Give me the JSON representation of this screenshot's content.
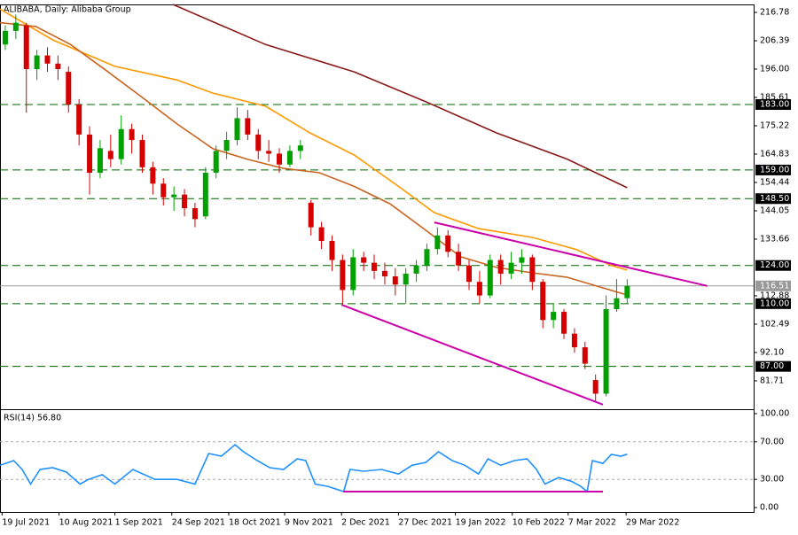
{
  "chart_data": {
    "type": "candlestick",
    "title": "ALIBABA, Daily:  Alibaba Group",
    "colors": {
      "up": "#00a000",
      "down": "#d40000"
    },
    "ohlc": [
      [
        205,
        212,
        203,
        210
      ],
      [
        210,
        216,
        207,
        213
      ],
      [
        212,
        213,
        180,
        196
      ],
      [
        196,
        203,
        192,
        201
      ],
      [
        201,
        204,
        195,
        198
      ],
      [
        198,
        201,
        192,
        196
      ],
      [
        195,
        197,
        180,
        183
      ],
      [
        183,
        185,
        168,
        172
      ],
      [
        172,
        175,
        150,
        158
      ],
      [
        158,
        170,
        156,
        167
      ],
      [
        166,
        172,
        160,
        163
      ],
      [
        163,
        179,
        161,
        174
      ],
      [
        174,
        176,
        165,
        170
      ],
      [
        170,
        172,
        158,
        160
      ],
      [
        160,
        162,
        150,
        154
      ],
      [
        154,
        156,
        146,
        149
      ],
      [
        149,
        153,
        144,
        150
      ],
      [
        150,
        152,
        142,
        145
      ],
      [
        145,
        147,
        138,
        141
      ],
      [
        142,
        160,
        141,
        158
      ],
      [
        158,
        168,
        156,
        166
      ],
      [
        166,
        173,
        163,
        170
      ],
      [
        170,
        182,
        168,
        178
      ],
      [
        178,
        181,
        170,
        172
      ],
      [
        172,
        174,
        163,
        166
      ],
      [
        166,
        170,
        162,
        165
      ],
      [
        165,
        167,
        158,
        161
      ],
      [
        161,
        168,
        160,
        166
      ],
      [
        166,
        170,
        163,
        168
      ],
      [
        147,
        148,
        135,
        138
      ],
      [
        138,
        140,
        130,
        133
      ],
      [
        133,
        135,
        122,
        126
      ],
      [
        126,
        128,
        110,
        115
      ],
      [
        115,
        130,
        113,
        127
      ],
      [
        127,
        129,
        122,
        125
      ],
      [
        125,
        128,
        119,
        122
      ],
      [
        122,
        125,
        117,
        120
      ],
      [
        120,
        123,
        113,
        117
      ],
      [
        117,
        123,
        110,
        121
      ],
      [
        121,
        126,
        118,
        124
      ],
      [
        124,
        132,
        122,
        130
      ],
      [
        130,
        138,
        128,
        135
      ],
      [
        135,
        137,
        127,
        129
      ],
      [
        129,
        132,
        122,
        124
      ],
      [
        124,
        126,
        115,
        118
      ],
      [
        118,
        122,
        110,
        113
      ],
      [
        113,
        128,
        112,
        126
      ],
      [
        126,
        128,
        117,
        121
      ],
      [
        121,
        129,
        119,
        125
      ],
      [
        125,
        130,
        121,
        127
      ],
      [
        127,
        128,
        115,
        118
      ],
      [
        118,
        119,
        101,
        104
      ],
      [
        104,
        110,
        101,
        107
      ],
      [
        107,
        108,
        97,
        99
      ],
      [
        99,
        101,
        92,
        94
      ],
      [
        94,
        96,
        86,
        88
      ],
      [
        82,
        84,
        74,
        77
      ],
      [
        77,
        113,
        76,
        108
      ],
      [
        108,
        119,
        107,
        112
      ],
      [
        112,
        119,
        110,
        116.51
      ]
    ],
    "xlim": [
      -0.5,
      71
    ],
    "xticks": [
      {
        "value": -0.3,
        "label": "19 Jul 2021"
      },
      {
        "value": 5.1,
        "label": "10 Aug 2021"
      },
      {
        "value": 10.4,
        "label": "1 Sep 2021"
      },
      {
        "value": 15.8,
        "label": "24 Sep 2021"
      },
      {
        "value": 21.2,
        "label": "18 Oct 2021"
      },
      {
        "value": 26.5,
        "label": "9 Nov 2021"
      },
      {
        "value": 31.9,
        "label": "2 Dec 2021"
      },
      {
        "value": 37.3,
        "label": "27 Dec 2021"
      },
      {
        "value": 42.7,
        "label": "19 Jan 2022"
      },
      {
        "value": 48.1,
        "label": "10 Feb 2022"
      },
      {
        "value": 53.4,
        "label": "7 Mar 2022"
      },
      {
        "value": 58.9,
        "label": "29 Mar 2022"
      }
    ],
    "ylim": [
      71.3,
      219.7
    ],
    "yticks": [
      216.78,
      206.39,
      {
        "value": 196,
        "label": "196.00"
      },
      185.61,
      175.22,
      164.83,
      154.44,
      144.05,
      133.66,
      112.88,
      102.49,
      {
        "value": 92.1,
        "label": "92.10"
      },
      81.71
    ],
    "moving_averages": [
      {
        "color": "#ff9900",
        "x": [
          -0.5,
          4.5,
          10.4,
          16.3,
          19.7,
          24.7,
          28.9,
          33.1,
          37.3,
          40.7,
          44.9,
          50,
          54.2,
          57.5,
          59
        ],
        "values": [
          218,
          206.7,
          197,
          192,
          187.2,
          182.4,
          172.6,
          164.5,
          153,
          143.4,
          137.5,
          134.3,
          129.8,
          124,
          122.3
        ]
      },
      {
        "color": "#c8641e",
        "x": [
          -0.5,
          2.9,
          6.2,
          9.6,
          13,
          16.3,
          19.7,
          23,
          26.4,
          29.8,
          33.1,
          36.5,
          39.9,
          43.2,
          46.6,
          50,
          53.3,
          56.7,
          59
        ],
        "values": [
          213,
          211.6,
          205,
          195.4,
          185.6,
          175.9,
          166.8,
          162.9,
          159.6,
          158,
          153,
          146.6,
          136.9,
          127.2,
          123.3,
          121.3,
          119.7,
          115.8,
          113.2
        ]
      },
      {
        "color": "#8b1a1a",
        "x": [
          15.9,
          24.7,
          33.1,
          39.9,
          46.6,
          53.3,
          59
        ],
        "values": [
          219.7,
          205,
          195,
          184,
          172.6,
          163,
          152.5
        ]
      }
    ],
    "level_color": "#006400",
    "levels": [
      {
        "value": 183,
        "label": "183.00"
      },
      {
        "value": 159,
        "label": "159.00"
      },
      {
        "value": 148.5,
        "label": "148.50"
      },
      {
        "value": 124,
        "label": "124.00"
      },
      {
        "value": 110,
        "label": "110.00"
      },
      {
        "value": 87,
        "label": "87.00"
      }
    ],
    "last_price": 116.51,
    "trendline_color": "#cc00aa",
    "trendlines": [
      {
        "x": [
          40.7,
          66.6
        ],
        "values": [
          139.8,
          116.5
        ]
      },
      {
        "x": [
          31.9,
          56.7
        ],
        "values": [
          109.6,
          73
        ]
      }
    ],
    "rsi": {
      "title": "RSI(14) 56.80",
      "color": "#1e90ff",
      "ylim": [
        -4.7,
        104.7
      ],
      "yticks": [
        {
          "value": 100,
          "label": "100.00"
        },
        {
          "value": 70,
          "label": "70.00"
        },
        {
          "value": 30,
          "label": "30.00"
        },
        {
          "value": 0,
          "label": "0.00"
        }
      ],
      "levels": [
        70,
        30
      ],
      "x": [
        -0.5,
        0.8,
        1.6,
        2.4,
        3.3,
        4.5,
        5.8,
        7.1,
        7.9,
        9.2,
        10.4,
        12.1,
        14.2,
        16.3,
        18,
        19.3,
        20.5,
        21.8,
        22.6,
        23.9,
        25.1,
        26.4,
        27.7,
        28.5,
        29.4,
        30.6,
        32.1,
        32.7,
        34,
        35.7,
        37.3,
        38.6,
        39.9,
        41.1,
        42.4,
        43.6,
        44.9,
        45.8,
        47,
        48.3,
        49.5,
        50.4,
        51.2,
        52.5,
        53.7,
        54.6,
        55.2,
        55.7,
        56.7,
        57.5,
        58.4,
        59
      ],
      "values": [
        45,
        50,
        40.6,
        25,
        40.6,
        42.5,
        37.7,
        25,
        30,
        35,
        25,
        40.6,
        30,
        30,
        25,
        57.5,
        54.7,
        67,
        59.4,
        50,
        42.5,
        40.6,
        51.9,
        50,
        25,
        22.6,
        17,
        40.6,
        38.7,
        40.6,
        35.8,
        45,
        48.1,
        59.4,
        50,
        45,
        35.8,
        51.9,
        45,
        50,
        51.9,
        40.6,
        25,
        32,
        28,
        22.6,
        17,
        50,
        47,
        56.6,
        54.7,
        56.8
      ],
      "trendline": {
        "x": [
          32.1,
          56.7
        ],
        "values": [
          17,
          17
        ]
      }
    }
  }
}
